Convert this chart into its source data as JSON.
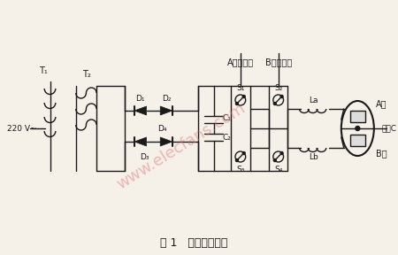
{
  "title": "图 1   功率控制电路",
  "label_A_inv": "A相逆变器",
  "label_B_inv": "B相逆变器",
  "label_220V": "220 V~",
  "label_T1": "T₁",
  "label_T2": "T₂",
  "label_D1": "D₁",
  "label_D2": "D₂",
  "label_D3": "D₃",
  "label_D4": "D₄",
  "label_C1": "C₁",
  "label_C2": "C₂",
  "label_S1": "S₁",
  "label_S2": "S₂",
  "label_S3": "S₃",
  "label_S4": "S₄",
  "label_La": "La",
  "label_Lb": "Lb",
  "label_A_phase": "A相",
  "label_B_phase": "B相",
  "label_arc": "弧极C",
  "watermark": "www.elecfans.com",
  "bg_color": "#f5f0e8",
  "line_color": "#1a1a1a",
  "watermark_color_1": "#dd7070"
}
